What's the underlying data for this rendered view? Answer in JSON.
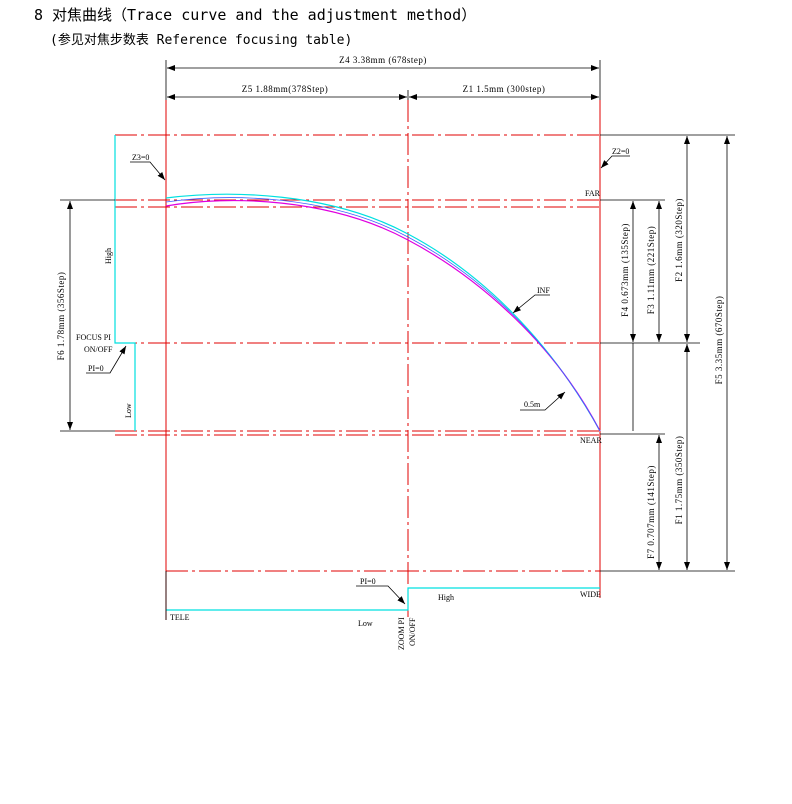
{
  "header": {
    "title": "8 对焦曲线（Trace curve and the adjustment method）",
    "subtitle": "(参见对焦步数表 Reference focusing  table)"
  },
  "dimensions": {
    "z4": "Z4  3.38mm (678step)",
    "z5": "Z5  1.88mm(378Step)",
    "z1": "Z1  1.5mm (300step)",
    "f6": "F6  1.78mm (356Step)",
    "f4": "F4  0.673mm (135Step)",
    "f3": "F3  1.11mm (221Step)",
    "f2": "F2  1.6mm (320Step)",
    "f5": "F5  3.35mm (670Step)",
    "f1": "F1  1.75mm (350Step)",
    "f7": "F7  0.707mm (141Step)"
  },
  "labels": {
    "z3": "Z3=0",
    "z2": "Z2=0",
    "far": "FAR",
    "near": "NEAR",
    "high_left": "High",
    "low_left": "Low",
    "focus_pi": "FOCUS PI",
    "focus_onoff": "ON/OFF",
    "pi_focus": "PI=0",
    "inf": "INF",
    "half_m": "0.5m",
    "tele": "TELE",
    "wide": "WIDE",
    "low_bottom": "Low",
    "high_bottom": "High",
    "pi_zoom": "PI=0",
    "zoom_pi": "ZOOM PI",
    "zoom_onoff": "ON/OFF"
  }
}
